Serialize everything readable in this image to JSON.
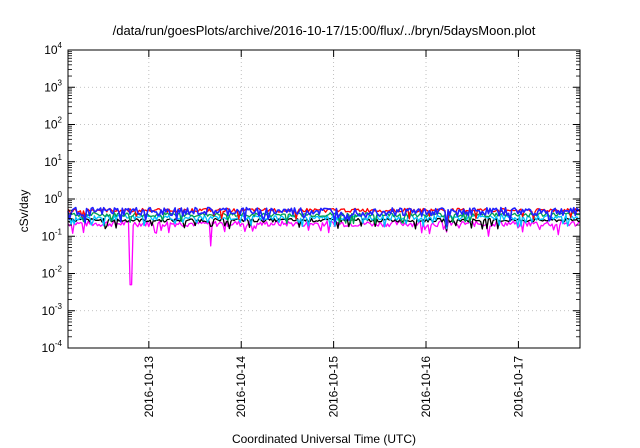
{
  "chart_data": {
    "type": "line",
    "title": "/data/run/goesPlots/archive/2016-10-17/15:00/flux/../bryn/5daysMoon.plot",
    "xlabel": "Coordinated Universal Time (UTC)",
    "ylabel": "cSv/day",
    "yscale": "log",
    "ylim": [
      0.0001,
      10000
    ],
    "xlim": [
      "2016-10-12T03:00",
      "2016-10-17T16:00"
    ],
    "grid": true,
    "legend": "none",
    "ytick_labels": [
      {
        "base": "10",
        "exp": "-4"
      },
      {
        "base": "10",
        "exp": "-3"
      },
      {
        "base": "10",
        "exp": "-2"
      },
      {
        "base": "10",
        "exp": "-1"
      },
      {
        "base": "10",
        "exp": "0"
      },
      {
        "base": "10",
        "exp": "1"
      },
      {
        "base": "10",
        "exp": "2"
      },
      {
        "base": "10",
        "exp": "3"
      },
      {
        "base": "10",
        "exp": "4"
      }
    ],
    "xtick_labels": [
      "2016-10-13",
      "2016-10-14",
      "2016-10-15",
      "2016-10-16",
      "2016-10-17"
    ],
    "series": [
      {
        "color": "#ff00ff",
        "base": 0.22,
        "amp": 0.04,
        "dips": [
          [
            0.68,
            0.005
          ],
          [
            1.55,
            0.055
          ],
          [
            0.05,
            0.12
          ],
          [
            4.1,
            0.13
          ],
          [
            4.55,
            0.1
          ],
          [
            5.3,
            0.11
          ]
        ]
      },
      {
        "color": "#000000",
        "base": 0.27,
        "amp": 0.03,
        "dips": [
          [
            4.1,
            0.14
          ]
        ]
      },
      {
        "color": "#00c0ff",
        "base": 0.32,
        "amp": 0.05,
        "dips": [
          [
            4.1,
            0.16
          ]
        ]
      },
      {
        "color": "#00a050",
        "base": 0.38,
        "amp": 0.05,
        "dips": [
          [
            4.1,
            0.18
          ]
        ]
      },
      {
        "color": "#ff0000",
        "base": 0.5,
        "amp": 0.06,
        "dips": [
          [
            4.1,
            0.2
          ]
        ]
      },
      {
        "color": "#2020ff",
        "base": 0.47,
        "amp": 0.12,
        "dips": [
          [
            4.1,
            0.19
          ]
        ]
      }
    ]
  }
}
